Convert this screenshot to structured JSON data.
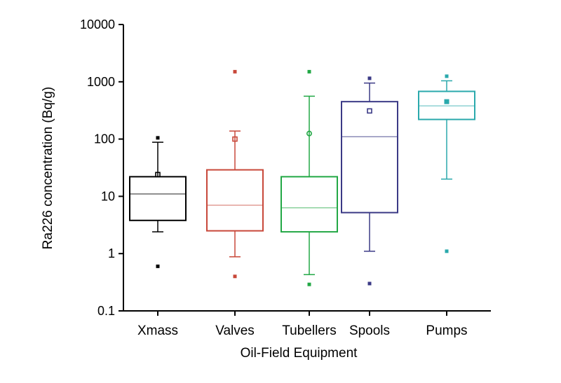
{
  "chart_data": {
    "type": "boxplot",
    "xlabel": "Oil-Field Equipment",
    "ylabel": "Ra226 concentration (Bq/g)",
    "yscale": "log",
    "ylim": [
      0.1,
      10000
    ],
    "yticks": [
      {
        "value": 0.1,
        "label": "0.1"
      },
      {
        "value": 1,
        "label": "1"
      },
      {
        "value": 10,
        "label": "10"
      },
      {
        "value": 100,
        "label": "100"
      },
      {
        "value": 1000,
        "label": "1000"
      },
      {
        "value": 10000,
        "label": "10000"
      }
    ],
    "grid": false,
    "categories": [
      "Xmass",
      "Valves",
      "Tubellers",
      "Spools",
      "Pumps"
    ],
    "boxes": [
      {
        "category": "Xmass",
        "color": "#000000",
        "q1": 3.8,
        "median": 11,
        "q3": 22,
        "whisker_low": 2.4,
        "whisker_high": 88,
        "mean": 24,
        "mean_marker": "square",
        "outliers": [
          105,
          0.6
        ]
      },
      {
        "category": "Valves",
        "color": "#c8483a",
        "q1": 2.5,
        "median": 7,
        "q3": 29,
        "whisker_low": 0.88,
        "whisker_high": 138,
        "mean": 100,
        "mean_marker": "square",
        "outliers": [
          1500,
          0.4
        ]
      },
      {
        "category": "Tubellers",
        "color": "#22a845",
        "q1": 2.4,
        "median": 6.3,
        "q3": 22,
        "whisker_low": 0.43,
        "whisker_high": 560,
        "mean": 125,
        "mean_marker": "circle",
        "outliers": [
          1500,
          0.29
        ]
      },
      {
        "category": "Spools",
        "color": "#3b3a86",
        "q1": 5.2,
        "median": 110,
        "q3": 450,
        "whisker_low": 1.1,
        "whisker_high": 950,
        "mean": 310,
        "mean_marker": "square",
        "outliers": [
          1150,
          0.3
        ]
      },
      {
        "category": "Pumps",
        "color": "#2aa9ac",
        "q1": 220,
        "median": 380,
        "q3": 680,
        "whisker_low": 20,
        "whisker_high": 1040,
        "mean": 450,
        "mean_marker": "filled-square",
        "outliers": [
          1250,
          1.1
        ]
      }
    ]
  }
}
